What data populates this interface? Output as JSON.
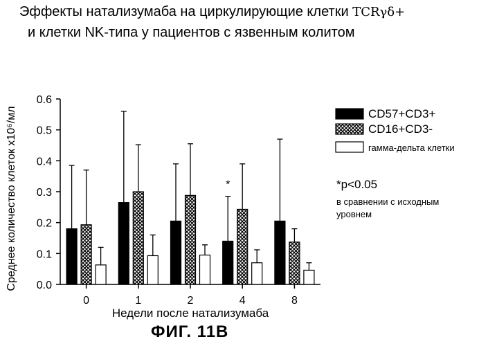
{
  "title_line1": "Эффекты натализумаба на циркулирующие клетки",
  "title_line1_suffix": "TCRγδ+",
  "title_line2": "и клетки NK-типа у пациентов с  язвенным колитом",
  "figure_label": "ФИГ. 11В",
  "significance_note": "*p<0.05",
  "significance_detail": [
    "в сравнении с исходным",
    "уровнем"
  ],
  "chart_data": {
    "type": "bar",
    "categories": [
      "0",
      "1",
      "2",
      "4",
      "8"
    ],
    "xlabel": "Недели после натализумаба",
    "ylabel": "Среднее количество клеток x10⁶/мл",
    "ylim": [
      0,
      0.6
    ],
    "yticks": [
      "0.0",
      "0.1",
      "0.2",
      "0.3",
      "0.4",
      "0.5",
      "0.6"
    ],
    "grid": false,
    "legend_position": "right",
    "series": [
      {
        "name": "CD57+CD3+",
        "fill": "solid-black",
        "values": [
          0.18,
          0.265,
          0.205,
          0.14,
          0.205
        ],
        "error_upper": [
          0.385,
          0.56,
          0.39,
          0.285,
          0.47
        ]
      },
      {
        "name": "CD16+CD3-",
        "fill": "crosshatch",
        "values": [
          0.193,
          0.3,
          0.288,
          0.243,
          0.137
        ],
        "error_upper": [
          0.37,
          0.452,
          0.455,
          0.39,
          0.18
        ]
      },
      {
        "name": "гамма-дельта клетки",
        "fill": "white",
        "values": [
          0.063,
          0.093,
          0.095,
          0.07,
          0.046
        ],
        "error_upper": [
          0.12,
          0.16,
          0.128,
          0.112,
          0.07
        ]
      }
    ],
    "annotations": [
      {
        "category": "4",
        "series": "CD57+CD3+",
        "text": "*"
      }
    ]
  }
}
